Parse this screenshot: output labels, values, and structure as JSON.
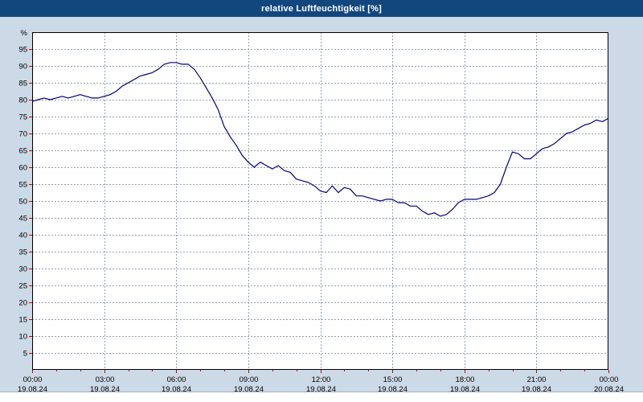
{
  "window": {
    "title": "relative Luftfeuchtigkeit [%]"
  },
  "colors": {
    "titlebar_bg": "#12477e",
    "titlebar_text": "#ffffff",
    "page_bg": "#ccd9e6",
    "plot_bg": "#ffffff",
    "grid": "#93a2b4",
    "axis": "#000000",
    "tick": "#cc0000",
    "line": "#000080",
    "label": "#000000",
    "footer_bg": "#ffffff"
  },
  "chart_data": {
    "type": "line",
    "title": "relative Luftfeuchtigkeit [%]",
    "ylabel": "%",
    "xlabel": "",
    "xlim": [
      0,
      24
    ],
    "ylim": [
      0,
      100
    ],
    "grid": true,
    "legend": "none",
    "y_unit_label": "%",
    "y_ticks": [
      5,
      10,
      15,
      20,
      25,
      30,
      35,
      40,
      45,
      50,
      55,
      60,
      65,
      70,
      75,
      80,
      85,
      90,
      95
    ],
    "x_ticks": [
      {
        "hours": 0,
        "time": "00:00",
        "date": "19.08.24"
      },
      {
        "hours": 3,
        "time": "03:00",
        "date": "19.08.24"
      },
      {
        "hours": 6,
        "time": "06:00",
        "date": "19.08.24"
      },
      {
        "hours": 9,
        "time": "09:00",
        "date": "19.08.24"
      },
      {
        "hours": 12,
        "time": "12:00",
        "date": "19.08.24"
      },
      {
        "hours": 15,
        "time": "15:00",
        "date": "19.08.24"
      },
      {
        "hours": 18,
        "time": "18:00",
        "date": "19.08.24"
      },
      {
        "hours": 21,
        "time": "21:00",
        "date": "19.08.24"
      },
      {
        "hours": 24,
        "time": "00:00",
        "date": "20.08.24"
      }
    ],
    "series": [
      {
        "name": "relative Luftfeuchtigkeit",
        "points": [
          [
            0,
            79.5
          ],
          [
            0.25,
            80
          ],
          [
            0.5,
            80.5
          ],
          [
            0.75,
            80
          ],
          [
            1,
            80.5
          ],
          [
            1.25,
            81
          ],
          [
            1.5,
            80.5
          ],
          [
            1.75,
            81
          ],
          [
            2,
            81.5
          ],
          [
            2.25,
            81
          ],
          [
            2.5,
            80.5
          ],
          [
            2.75,
            80.5
          ],
          [
            3,
            81
          ],
          [
            3.25,
            81.5
          ],
          [
            3.5,
            82.5
          ],
          [
            3.75,
            84
          ],
          [
            4,
            85
          ],
          [
            4.25,
            86
          ],
          [
            4.5,
            87
          ],
          [
            4.75,
            87.5
          ],
          [
            5,
            88
          ],
          [
            5.25,
            89
          ],
          [
            5.5,
            90.5
          ],
          [
            5.75,
            91
          ],
          [
            6,
            91
          ],
          [
            6.25,
            90.5
          ],
          [
            6.5,
            90.5
          ],
          [
            6.75,
            89
          ],
          [
            7,
            86.5
          ],
          [
            7.25,
            83.5
          ],
          [
            7.5,
            80.5
          ],
          [
            7.75,
            77
          ],
          [
            8,
            72
          ],
          [
            8.25,
            69
          ],
          [
            8.5,
            66.5
          ],
          [
            8.75,
            63.5
          ],
          [
            9,
            61.5
          ],
          [
            9.25,
            60
          ],
          [
            9.5,
            61.5
          ],
          [
            9.75,
            60.5
          ],
          [
            10,
            59.5
          ],
          [
            10.25,
            60.5
          ],
          [
            10.5,
            59
          ],
          [
            10.75,
            58.5
          ],
          [
            11,
            56.5
          ],
          [
            11.25,
            56
          ],
          [
            11.5,
            55.5
          ],
          [
            11.75,
            54.5
          ],
          [
            12,
            53
          ],
          [
            12.25,
            52.5
          ],
          [
            12.5,
            54.5
          ],
          [
            12.75,
            52.5
          ],
          [
            13,
            54
          ],
          [
            13.25,
            53.5
          ],
          [
            13.5,
            51.5
          ],
          [
            13.75,
            51.5
          ],
          [
            14,
            51
          ],
          [
            14.25,
            50.5
          ],
          [
            14.5,
            50
          ],
          [
            14.75,
            50.5
          ],
          [
            15,
            50.5
          ],
          [
            15.25,
            49.5
          ],
          [
            15.5,
            49.5
          ],
          [
            15.75,
            48.5
          ],
          [
            16,
            48.5
          ],
          [
            16.25,
            47
          ],
          [
            16.5,
            46
          ],
          [
            16.75,
            46.5
          ],
          [
            17,
            45.5
          ],
          [
            17.25,
            46
          ],
          [
            17.5,
            47.5
          ],
          [
            17.75,
            49.5
          ],
          [
            18,
            50.5
          ],
          [
            18.25,
            50.5
          ],
          [
            18.5,
            50.5
          ],
          [
            18.75,
            51
          ],
          [
            19,
            51.5
          ],
          [
            19.25,
            52.5
          ],
          [
            19.5,
            55
          ],
          [
            19.75,
            60
          ],
          [
            20,
            64.5
          ],
          [
            20.25,
            64
          ],
          [
            20.5,
            62.5
          ],
          [
            20.75,
            62.5
          ],
          [
            21,
            64
          ],
          [
            21.25,
            65.5
          ],
          [
            21.5,
            66
          ],
          [
            21.75,
            67
          ],
          [
            22,
            68.5
          ],
          [
            22.25,
            70
          ],
          [
            22.5,
            70.5
          ],
          [
            22.75,
            71.5
          ],
          [
            23,
            72.5
          ],
          [
            23.25,
            73
          ],
          [
            23.5,
            74
          ],
          [
            23.75,
            73.5
          ],
          [
            24,
            74.5
          ]
        ]
      }
    ]
  }
}
